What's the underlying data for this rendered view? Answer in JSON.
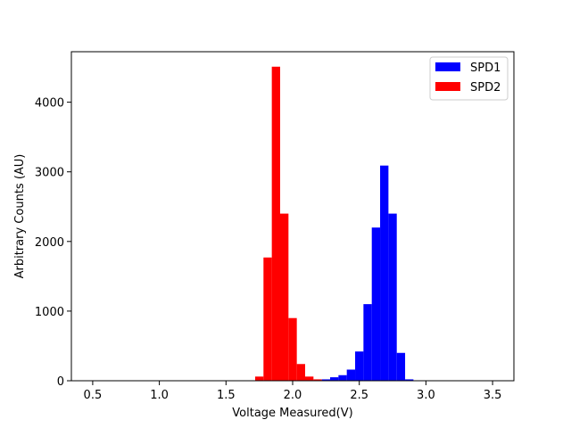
{
  "chart_data": {
    "type": "bar",
    "title": "",
    "xlabel": "Voltage Measured(V)",
    "ylabel": "Arbitrary Counts (AU)",
    "xlim": [
      0.34,
      3.66
    ],
    "ylim": [
      0,
      4725
    ],
    "xticks": [
      0.5,
      1.0,
      1.5,
      2.0,
      2.5,
      3.0,
      3.5
    ],
    "xtick_labels": [
      "0.5",
      "1.0",
      "1.5",
      "2.0",
      "2.5",
      "3.0",
      "3.5"
    ],
    "yticks": [
      0,
      1000,
      2000,
      3000,
      4000
    ],
    "ytick_labels": [
      "0",
      "1000",
      "2000",
      "3000",
      "4000"
    ],
    "bin_width": 0.0625,
    "grid": false,
    "legend_position": "top-right",
    "series": [
      {
        "name": "SPD1",
        "color": "#0000ff",
        "bins": [
          {
            "x": 2.125,
            "value": 5
          },
          {
            "x": 2.1875,
            "value": 10
          },
          {
            "x": 2.25,
            "value": 20
          },
          {
            "x": 2.3125,
            "value": 50
          },
          {
            "x": 2.375,
            "value": 80
          },
          {
            "x": 2.4375,
            "value": 160
          },
          {
            "x": 2.5,
            "value": 420
          },
          {
            "x": 2.5625,
            "value": 1100
          },
          {
            "x": 2.625,
            "value": 2200
          },
          {
            "x": 2.6875,
            "value": 3090
          },
          {
            "x": 2.75,
            "value": 2400
          },
          {
            "x": 2.8125,
            "value": 400
          },
          {
            "x": 2.875,
            "value": 20
          }
        ]
      },
      {
        "name": "SPD2",
        "color": "#ff0000",
        "bins": [
          {
            "x": 1.75,
            "value": 60
          },
          {
            "x": 1.8125,
            "value": 1770
          },
          {
            "x": 1.875,
            "value": 4510
          },
          {
            "x": 1.9375,
            "value": 2400
          },
          {
            "x": 2.0,
            "value": 900
          },
          {
            "x": 2.0625,
            "value": 240
          },
          {
            "x": 2.125,
            "value": 60
          },
          {
            "x": 2.1875,
            "value": 20
          }
        ]
      }
    ]
  }
}
